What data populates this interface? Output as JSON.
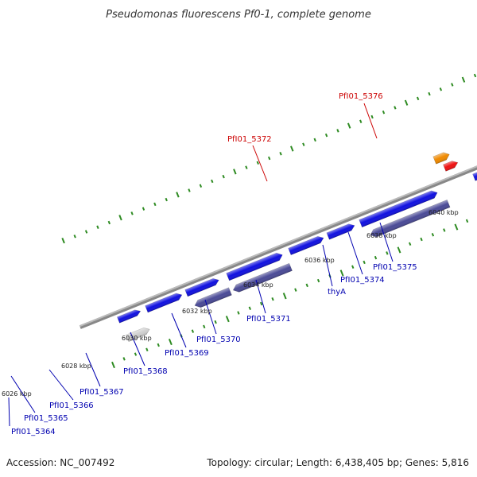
{
  "title": "Pseudomonas fluorescens Pf0-1, complete genome",
  "footer": {
    "accession": "Accession: NC_007492",
    "info": "Topology: circular; Length: 6,438,405 bp; Genes: 5,816"
  },
  "colors": {
    "backbone": "#888888",
    "tick": "#2e8b22",
    "label_blue": "#0000b0",
    "label_red": "#cc0000",
    "gene_blue": "#1010e0",
    "gene_purple": "#4a4a96",
    "gene_grey_light": "#cfcfcf",
    "gene_grey_dark": "#666666",
    "gene_orange": "#f08a00",
    "gene_red": "#ee1111",
    "gene_cyan": "#22bbee",
    "gene_olive": "#6b8e23",
    "gene_green": "#33cc33"
  },
  "scale_labels": [
    "6026 kbp",
    "6028 kbp",
    "6030 kbp",
    "6032 kbp",
    "6034 kbp",
    "6036 kbp",
    "6038 kbp",
    "6040 kbp"
  ],
  "gene_labels": [
    "PfI01_5364",
    "PfI01_5365",
    "PfI01_5366",
    "PfI01_5367",
    "PfI01_5368",
    "PfI01_5369",
    "PfI01_5370",
    "PfI01_5371",
    "thyA",
    "PfI01_5374",
    "PfI01_5375",
    "PfI01_5372",
    "PfI01_5376"
  ]
}
